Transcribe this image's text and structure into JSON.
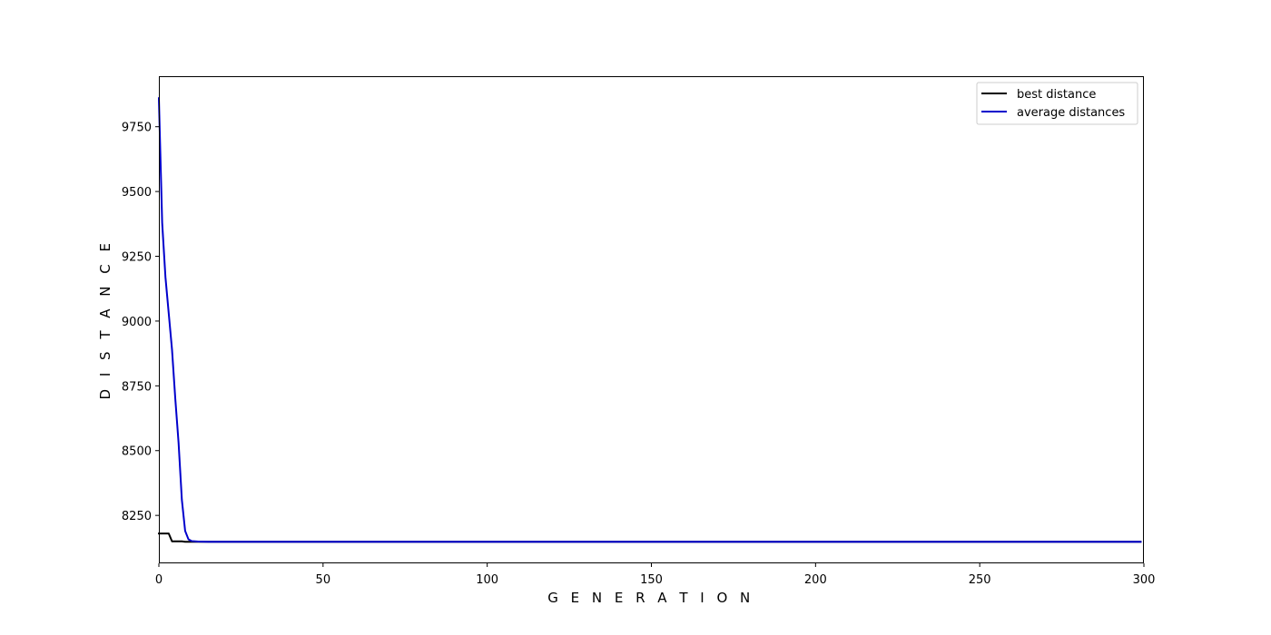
{
  "chart_data": {
    "type": "line",
    "title": "",
    "xlabel": "G E N E R A T I O N",
    "ylabel": "D I S T A N C E",
    "xlim": [
      0,
      300
    ],
    "ylim": [
      8065,
      9945
    ],
    "x_ticks": [
      0,
      50,
      100,
      150,
      200,
      250,
      300
    ],
    "y_ticks": [
      8250,
      8500,
      8750,
      9000,
      9250,
      9500,
      9750
    ],
    "grid": false,
    "legend": {
      "placement": "top-right",
      "entries": [
        "best distance",
        "average distances"
      ]
    },
    "series": [
      {
        "name": "best distance",
        "color": "#000000",
        "x": [
          0,
          1,
          2,
          3,
          4,
          5,
          6,
          7,
          8,
          9,
          10,
          11,
          12,
          15,
          20,
          299
        ],
        "values": [
          8180,
          8180,
          8180,
          8180,
          8150,
          8150,
          8150,
          8150,
          8148,
          8148,
          8148,
          8148,
          8148,
          8148,
          8148,
          8148
        ]
      },
      {
        "name": "average distances",
        "color": "#0000cc",
        "x": [
          0,
          1,
          2,
          3,
          4,
          5,
          6,
          7,
          8,
          9,
          10,
          12,
          15,
          20,
          299
        ],
        "values": [
          9860,
          9380,
          9170,
          9030,
          8890,
          8700,
          8530,
          8310,
          8190,
          8158,
          8151,
          8149,
          8148,
          8148,
          8148
        ]
      }
    ]
  }
}
